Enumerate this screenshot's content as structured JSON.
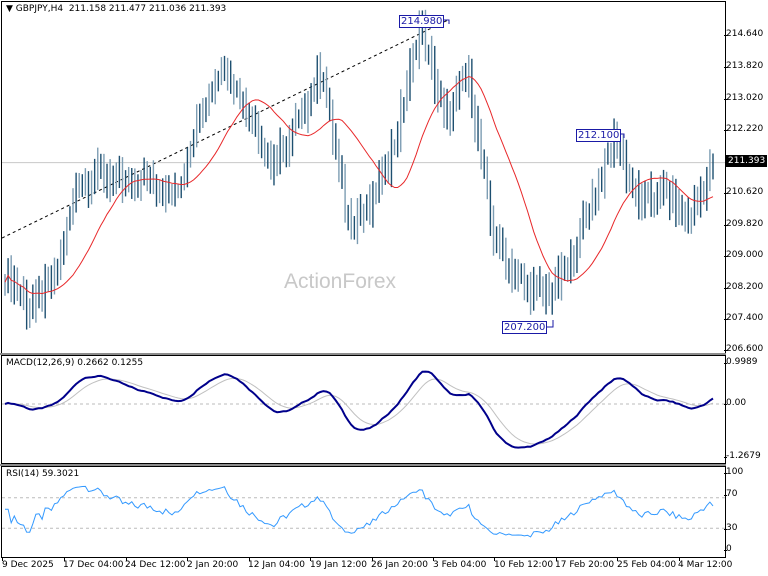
{
  "chart_header": {
    "symbol_label": "▼ GBPJPY,H4",
    "ohlc_label": "211.158 211.477 211.036 211.393"
  },
  "watermark": "ActionForex",
  "price_axis": {
    "ticks": [
      "214.640",
      "213.820",
      "213.020",
      "212.220",
      "210.620",
      "209.820",
      "209.000",
      "208.200",
      "207.400",
      "206.600"
    ],
    "current_price": "211.393"
  },
  "annotations": {
    "high": "214.980",
    "swing_high": "212.100",
    "low": "207.200"
  },
  "macd": {
    "label": "MACD(12,26,9) 0.2662 0.1255",
    "ticks": [
      "0.9989",
      "0.00",
      "-1.2679"
    ]
  },
  "rsi": {
    "label": "RSI(14) 59.3021",
    "ticks": [
      "100",
      "70",
      "30",
      "0"
    ]
  },
  "time_axis": {
    "labels": [
      "9 Dec 2025",
      "17 Dec 04:00",
      "24 Dec 12:00",
      "2 Jan 20:00",
      "12 Jan 04:00",
      "19 Jan 12:00",
      "26 Jan 20:00",
      "3 Feb 04:00",
      "10 Feb 12:00",
      "17 Feb 20:00",
      "25 Feb 04:00",
      "4 Mar 12:00"
    ]
  },
  "colors": {
    "bars": "#4a6f8a",
    "ma": "#e8282a",
    "macd_main": "#00008b",
    "macd_signal": "#c0c0c0",
    "rsi": "#3399ff",
    "trendline": "#000000",
    "annotation": "#1a1aa6"
  },
  "chart_data": [
    {
      "type": "ohlc",
      "title": "GBPJPY,H4",
      "symbol": "GBPJPY",
      "timeframe": "H4",
      "last_ohlc": {
        "open": 211.158,
        "high": 211.477,
        "low": 211.036,
        "close": 211.393
      },
      "x_labels": [
        "9 Dec 2025",
        "17 Dec 04:00",
        "24 Dec 12:00",
        "2 Jan 20:00",
        "12 Jan 04:00",
        "19 Jan 12:00",
        "26 Jan 20:00",
        "3 Feb 04:00",
        "10 Feb 12:00",
        "17 Feb 20:00",
        "25 Feb 04:00",
        "4 Mar 12:00"
      ],
      "ylim": [
        206.6,
        215.1
      ],
      "y_ticks": [
        214.64,
        213.82,
        213.02,
        212.22,
        210.62,
        209.82,
        209.0,
        208.2,
        207.4,
        206.6
      ],
      "approx_close_path": [
        {
          "x": "9 Dec 2025",
          "close": 208.6
        },
        {
          "x": "12 Dec",
          "close": 207.7
        },
        {
          "x": "15 Dec",
          "close": 208.4
        },
        {
          "x": "17 Dec 04:00",
          "close": 210.9
        },
        {
          "x": "20 Dec",
          "close": 211.1
        },
        {
          "x": "24 Dec 12:00",
          "close": 210.8
        },
        {
          "x": "29 Dec",
          "close": 211.0
        },
        {
          "x": "2 Jan 20:00",
          "close": 210.5
        },
        {
          "x": "8 Jan",
          "close": 212.8
        },
        {
          "x": "10 Jan",
          "close": 213.9
        },
        {
          "x": "12 Jan 04:00",
          "close": 212.6
        },
        {
          "x": "15 Jan",
          "close": 211.3
        },
        {
          "x": "19 Jan 12:00",
          "close": 212.4
        },
        {
          "x": "22 Jan",
          "close": 213.8
        },
        {
          "x": "23 Jan",
          "close": 209.9
        },
        {
          "x": "26 Jan 20:00",
          "close": 210.3
        },
        {
          "x": "29 Jan",
          "close": 212.0
        },
        {
          "x": "3 Feb 04:00",
          "close": 214.9
        },
        {
          "x": "5 Feb",
          "close": 212.5
        },
        {
          "x": "6 Feb",
          "close": 213.6
        },
        {
          "x": "9 Feb",
          "close": 209.5
        },
        {
          "x": "10 Feb 12:00",
          "close": 208.4
        },
        {
          "x": "13 Feb",
          "close": 208.0
        },
        {
          "x": "17 Feb 20:00",
          "close": 208.6
        },
        {
          "x": "20 Feb",
          "close": 210.4
        },
        {
          "x": "23 Feb",
          "close": 212.0
        },
        {
          "x": "25 Feb 04:00",
          "close": 210.3
        },
        {
          "x": "27 Feb",
          "close": 210.7
        },
        {
          "x": "4 Mar 12:00",
          "close": 209.9
        },
        {
          "x": "last",
          "close": 211.393
        }
      ],
      "annotations": [
        {
          "label": "214.980",
          "type": "high"
        },
        {
          "label": "212.100",
          "type": "swing_high"
        },
        {
          "label": "207.200",
          "type": "low"
        }
      ],
      "overlays": [
        "moving average (red)",
        "dashed rising trendline (black)",
        "current price line 211.393"
      ]
    },
    {
      "type": "line",
      "title": "MACD(12,26,9) 0.2662 0.1255",
      "series": [
        {
          "name": "MACD",
          "last": 0.2662
        },
        {
          "name": "Signal",
          "last": 0.1255
        }
      ],
      "ylim": [
        -1.2679,
        0.9989
      ],
      "y_ticks": [
        0.9989,
        0.0,
        -1.2679
      ]
    },
    {
      "type": "line",
      "title": "RSI(14) 59.3021",
      "series": [
        {
          "name": "RSI(14)",
          "last": 59.3021
        }
      ],
      "ylim": [
        0,
        100
      ],
      "y_ticks": [
        100,
        70,
        30,
        0
      ],
      "levels": [
        70,
        30
      ]
    }
  ]
}
